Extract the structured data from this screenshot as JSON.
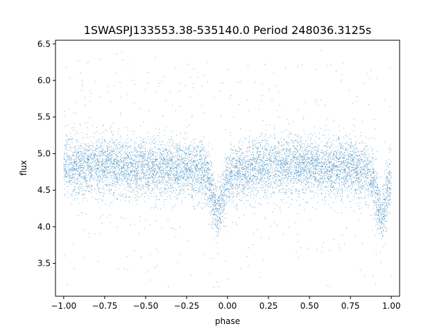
{
  "chart_data": {
    "type": "scatter",
    "title": "1SWASPJ133553.38-535140.0 Period 248036.3125s",
    "xlabel": "phase",
    "ylabel": "flux",
    "xlim": [
      -1.05,
      1.05
    ],
    "ylim": [
      3.05,
      6.55
    ],
    "xticks": [
      -1.0,
      -0.75,
      -0.5,
      -0.25,
      0.0,
      0.25,
      0.5,
      0.75,
      1.0
    ],
    "xtick_labels": [
      "−1.00",
      "−0.75",
      "−0.50",
      "−0.25",
      "0.00",
      "0.25",
      "0.50",
      "0.75",
      "1.00"
    ],
    "yticks": [
      3.5,
      4.0,
      4.5,
      5.0,
      5.5,
      6.0,
      6.5
    ],
    "ytick_labels": [
      "3.5",
      "4.0",
      "4.5",
      "5.0",
      "5.5",
      "6.0",
      "6.5"
    ],
    "grid": false,
    "marker_color": "#1f77b4",
    "series": [
      {
        "baseline_flux": 4.82,
        "phase_range": [
          -1.0,
          1.0
        ],
        "eclipses": [
          {
            "phase": -0.06,
            "min_flux": 4.12
          },
          {
            "phase": 0.94,
            "min_flux": 4.12
          }
        ],
        "envelope": [
          {
            "x": -1.0,
            "y": 4.82
          },
          {
            "x": -0.75,
            "y": 4.85
          },
          {
            "x": -0.5,
            "y": 4.8
          },
          {
            "x": -0.25,
            "y": 4.8
          },
          {
            "x": -0.12,
            "y": 4.7
          },
          {
            "x": -0.06,
            "y": 4.12
          },
          {
            "x": 0.0,
            "y": 4.7
          },
          {
            "x": 0.25,
            "y": 4.85
          },
          {
            "x": 0.5,
            "y": 4.8
          },
          {
            "x": 0.75,
            "y": 4.82
          },
          {
            "x": 0.88,
            "y": 4.7
          },
          {
            "x": 0.94,
            "y": 4.12
          },
          {
            "x": 1.0,
            "y": 4.7
          }
        ]
      }
    ]
  }
}
